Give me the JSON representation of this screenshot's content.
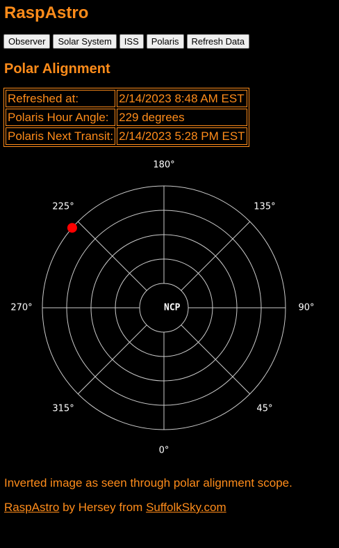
{
  "app": {
    "title": "RaspAstro"
  },
  "nav": {
    "buttons": [
      "Observer",
      "Solar System",
      "ISS",
      "Polaris",
      "Refresh Data"
    ]
  },
  "section": {
    "title": "Polar Alignment"
  },
  "info": {
    "rows": [
      {
        "label": "Refreshed at:",
        "value": "2/14/2023 8:48 AM EST"
      },
      {
        "label": "Polaris Hour Angle:",
        "value": "229 degrees"
      },
      {
        "label": "Polaris Next Transit:",
        "value": "2/14/2023 5:28 PM EST"
      }
    ]
  },
  "polar": {
    "center_label": "NCP",
    "angle_labels": [
      "180°",
      "135°",
      "90°",
      "45°",
      "0°",
      "315°",
      "270°",
      "225°"
    ],
    "polaris_hour_angle_deg": 229,
    "polaris_ring_fraction": 1.0,
    "colors": {
      "grid": "#cccccc",
      "marker": "#ff0000",
      "text": "#ffffff"
    }
  },
  "note": "Inverted image as seen through polar alignment scope.",
  "footer": {
    "link1": "RaspAstro",
    "middle": " by Hersey from ",
    "link2": "SuffolkSky.com"
  }
}
